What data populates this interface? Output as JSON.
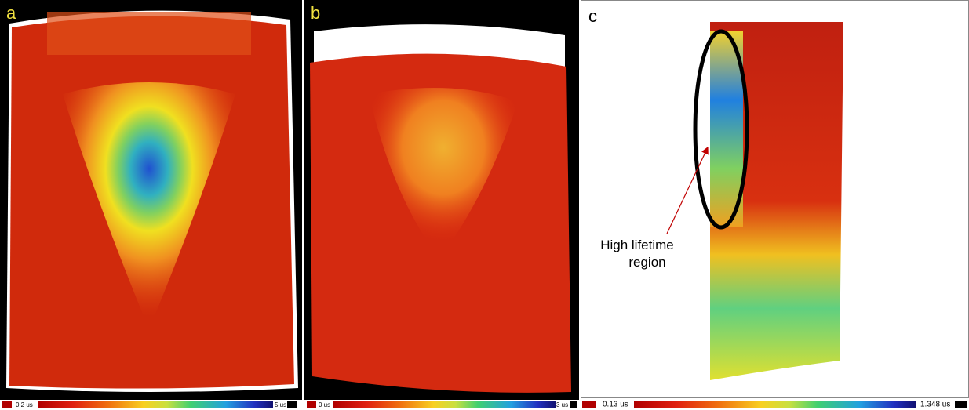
{
  "panels": [
    {
      "label": "a",
      "scale": {
        "min": "0.2 us",
        "max": "5 us"
      }
    },
    {
      "label": "b",
      "scale": {
        "min": "0 us",
        "max": "3 us"
      }
    },
    {
      "label": "c",
      "scale": {
        "min": "0.13 us",
        "max": "1.348 us"
      },
      "annotation": [
        "High lifetime",
        "region"
      ]
    }
  ]
}
